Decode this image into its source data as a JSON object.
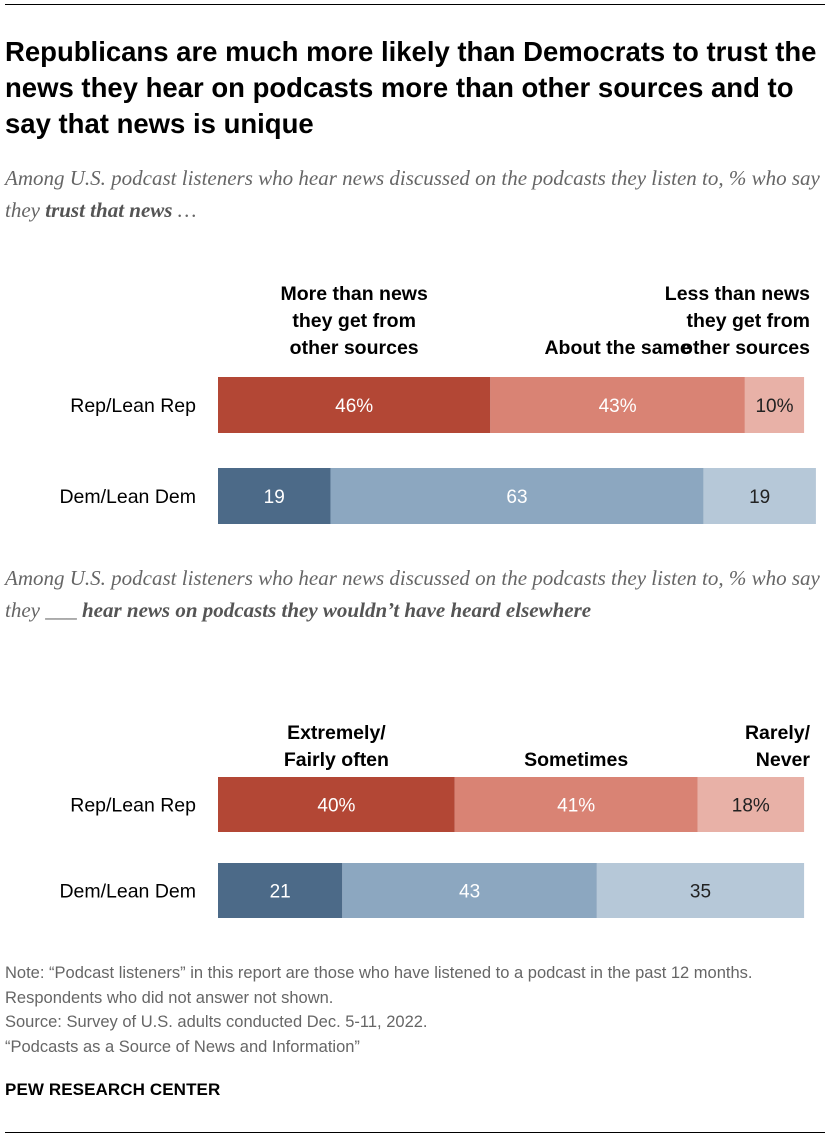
{
  "title": "Republicans are much more likely than Democrats to trust the news they hear on podcasts more than other sources and to say that news is unique",
  "subtitle_1": {
    "prefix": "Among U.S. podcast listeners who hear news discussed on the podcasts they listen to, % who say they ",
    "emphasis": "trust that news",
    "suffix": " …"
  },
  "subtitle_2": {
    "prefix": "Among U.S. podcast listeners who hear news discussed on the podcasts they listen to, % who say they ___ ",
    "emphasis": "hear news on podcasts they wouldn’t have heard elsewhere",
    "suffix": ""
  },
  "colors": {
    "rep": [
      "#b34735",
      "#d98374",
      "#e8b1a7"
    ],
    "dem": [
      "#4c6a88",
      "#8ca7c0",
      "#b6c8d8"
    ],
    "label_light": "#ffffff",
    "label_dark": "#222222"
  },
  "chart_data": [
    {
      "type": "bar",
      "orientation": "horizontal",
      "stacked": true,
      "categories": [
        "Rep/Lean Rep",
        "Dem/Lean Dem"
      ],
      "series": [
        {
          "name": "More than news they get from other sources",
          "values": [
            46,
            19
          ],
          "labels": [
            "46%",
            "19"
          ]
        },
        {
          "name": "About the same",
          "values": [
            43,
            63
          ],
          "labels": [
            "43%",
            "63"
          ]
        },
        {
          "name": "Less than news they get from other sources",
          "values": [
            10,
            19
          ],
          "labels": [
            "10%",
            "19"
          ]
        }
      ],
      "legend_placement": "top",
      "xlim": [
        0,
        100
      ]
    },
    {
      "type": "bar",
      "orientation": "horizontal",
      "stacked": true,
      "categories": [
        "Rep/Lean Rep",
        "Dem/Lean Dem"
      ],
      "series": [
        {
          "name": "Extremely/ Fairly often",
          "values": [
            40,
            21
          ],
          "labels": [
            "40%",
            "21"
          ]
        },
        {
          "name": "Sometimes",
          "values": [
            41,
            43
          ],
          "labels": [
            "41%",
            "43"
          ]
        },
        {
          "name": "Rarely/ Never",
          "values": [
            18,
            35
          ],
          "labels": [
            "18%",
            "35"
          ]
        }
      ],
      "legend_placement": "top",
      "xlim": [
        0,
        100
      ]
    }
  ],
  "notes": [
    "Note: “Podcast listeners” in this report are those who have listened to a podcast in the past 12 months. Respondents who did not answer not shown.",
    "Source: Survey of U.S. adults conducted Dec. 5-11, 2022.",
    "“Podcasts as a Source of News and Information”"
  ],
  "brand": "PEW RESEARCH CENTER"
}
